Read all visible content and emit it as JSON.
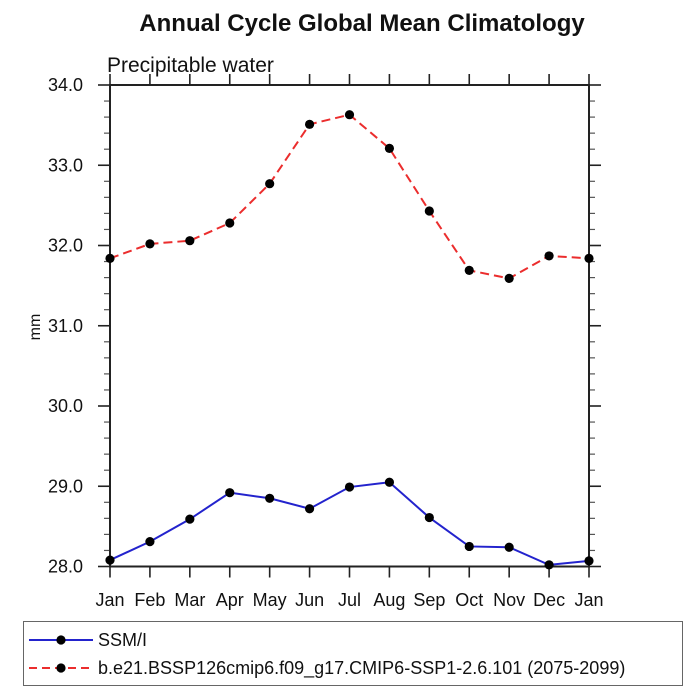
{
  "chart_data": {
    "type": "line",
    "title": "Annual Cycle Global Mean Climatology",
    "subtitle": "Precipitable water",
    "xlabel": "",
    "ylabel": "mm",
    "ylim": [
      28.0,
      34.0
    ],
    "y_major_step": 1.0,
    "y_minor_step": 0.2,
    "ytick_labels": [
      "28.0",
      "29.0",
      "30.0",
      "31.0",
      "32.0",
      "33.0",
      "34.0"
    ],
    "categories": [
      "Jan",
      "Feb",
      "Mar",
      "Apr",
      "May",
      "Jun",
      "Jul",
      "Aug",
      "Sep",
      "Oct",
      "Nov",
      "Dec",
      "Jan"
    ],
    "grid": false,
    "legend_position": "bottom-left-box",
    "frame_color": "#222222",
    "series": [
      {
        "name": "SSM/I",
        "color": "#2323cd",
        "line_style": "solid",
        "marker": "circle",
        "marker_color": "#000000",
        "values": [
          28.08,
          28.31,
          28.59,
          28.92,
          28.85,
          28.72,
          28.99,
          29.05,
          28.61,
          28.25,
          28.24,
          28.02,
          28.07
        ]
      },
      {
        "name": "b.e21.BSSP126cmip6.f09_g17.CMIP6-SSP1-2.6.101 (2075-2099)",
        "color": "#eb2d2d",
        "line_style": "dashed",
        "marker": "circle",
        "marker_color": "#000000",
        "values": [
          31.84,
          32.02,
          32.06,
          32.28,
          32.77,
          33.51,
          33.63,
          33.21,
          32.43,
          31.69,
          31.59,
          31.87,
          31.84
        ]
      }
    ]
  }
}
